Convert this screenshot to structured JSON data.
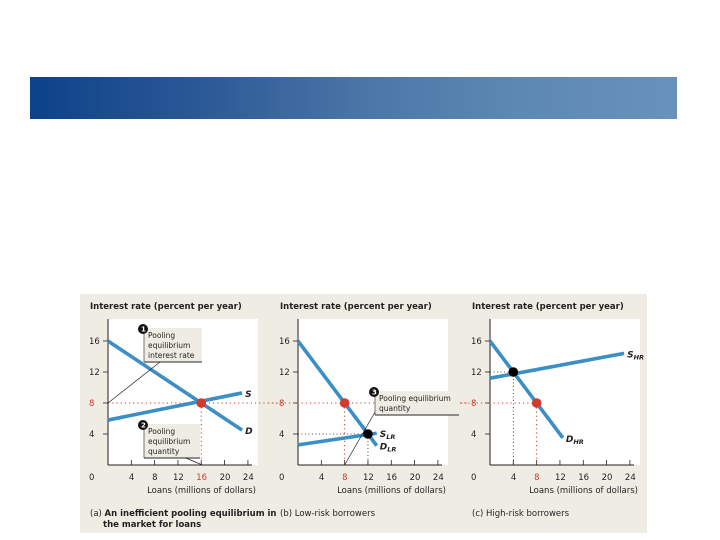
{
  "slide": {
    "banner_colors": [
      "#0c4289",
      "#6892bc"
    ]
  },
  "colors": {
    "curve": "#3b8fc4",
    "equilibrium_pooling": "#d33a2c",
    "equilibrium_separate": "#000000",
    "plot_bg": "#ffffff",
    "figure_bg": "#efece3"
  },
  "chart_data": [
    {
      "type": "line",
      "panel": "a",
      "title": "",
      "ylabel": "Interest rate (percent per year)",
      "xlabel": "Loans (millions of dollars)",
      "caption_prefix": "(a)",
      "caption_line1": "An inefficient pooling equilibrium in",
      "caption_line2": "the market for loans",
      "xlim": [
        0,
        25
      ],
      "ylim": [
        0,
        18
      ],
      "xticks": [
        "0",
        "4",
        "8",
        "12",
        "16",
        "20",
        "24"
      ],
      "xtick_values": [
        0,
        4,
        8,
        12,
        16,
        20,
        24
      ],
      "yticks": [
        "4",
        "8",
        "12",
        "16"
      ],
      "ytick_values": [
        4,
        8,
        12,
        16
      ],
      "highlight_x": 16,
      "highlight_y": 8,
      "series": [
        {
          "name": "S",
          "label": "S",
          "sub": "",
          "x": [
            0,
            23
          ],
          "y": [
            5.8,
            9.3
          ]
        },
        {
          "name": "D",
          "label": "D",
          "sub": "",
          "x": [
            0,
            23
          ],
          "y": [
            16,
            4.5
          ]
        }
      ],
      "points": [
        {
          "name": "pooling-equilibrium",
          "x": 16,
          "y": 8,
          "color": "red"
        }
      ],
      "annotations": [
        {
          "number": "1",
          "lines": [
            "Pooling",
            "equilibrium",
            "interest rate"
          ]
        },
        {
          "number": "2",
          "lines": [
            "Pooling",
            "equilibrium",
            "quantity"
          ]
        }
      ]
    },
    {
      "type": "line",
      "panel": "b",
      "ylabel": "Interest rate (percent per year)",
      "xlabel": "Loans (millions of dollars)",
      "caption_prefix": "(b)",
      "caption_line1": "Low-risk borrowers",
      "xlim": [
        0,
        25
      ],
      "ylim": [
        0,
        18
      ],
      "xticks": [
        "0",
        "4",
        "8",
        "12",
        "16",
        "20",
        "24"
      ],
      "xtick_values": [
        0,
        4,
        8,
        12,
        16,
        20,
        24
      ],
      "yticks": [
        "4",
        "8",
        "12",
        "16"
      ],
      "ytick_values": [
        4,
        8,
        12,
        16
      ],
      "highlight_x": 8,
      "highlight_y": 8,
      "series": [
        {
          "name": "S_LR",
          "label": "S",
          "sub": "LR",
          "x": [
            0,
            13.5
          ],
          "y": [
            2.6,
            4.1
          ]
        },
        {
          "name": "D_LR",
          "label": "D",
          "sub": "LR",
          "x": [
            0,
            13.5
          ],
          "y": [
            16,
            2.5
          ]
        }
      ],
      "points": [
        {
          "name": "pooling-point",
          "x": 8,
          "y": 8,
          "color": "red"
        },
        {
          "name": "low-risk-equilibrium",
          "x": 12,
          "y": 4,
          "color": "black"
        }
      ],
      "annotations": [
        {
          "number": "3",
          "lines": [
            "Pooling equilibrium",
            "quantity"
          ]
        }
      ]
    },
    {
      "type": "line",
      "panel": "c",
      "ylabel": "Interest rate (percent per year)",
      "xlabel": "Loans (millions of dollars)",
      "caption_prefix": "(c)",
      "caption_line1": "High-risk borrowers",
      "xlim": [
        0,
        25
      ],
      "ylim": [
        0,
        18
      ],
      "xticks": [
        "0",
        "4",
        "8",
        "12",
        "16",
        "20",
        "24"
      ],
      "xtick_values": [
        0,
        4,
        8,
        12,
        16,
        20,
        24
      ],
      "yticks": [
        "4",
        "8",
        "12",
        "16"
      ],
      "ytick_values": [
        4,
        8,
        12,
        16
      ],
      "highlight_x": 8,
      "highlight_y": 8,
      "series": [
        {
          "name": "S_HR",
          "label": "S",
          "sub": "HR",
          "x": [
            0,
            23
          ],
          "y": [
            11.2,
            14.4
          ]
        },
        {
          "name": "D_HR",
          "label": "D",
          "sub": "HR",
          "x": [
            0,
            12.5
          ],
          "y": [
            16,
            3.5
          ]
        }
      ],
      "points": [
        {
          "name": "high-risk-equilibrium",
          "x": 4,
          "y": 12,
          "color": "black"
        },
        {
          "name": "pooling-point",
          "x": 8,
          "y": 8,
          "color": "red"
        }
      ],
      "annotations": []
    }
  ]
}
